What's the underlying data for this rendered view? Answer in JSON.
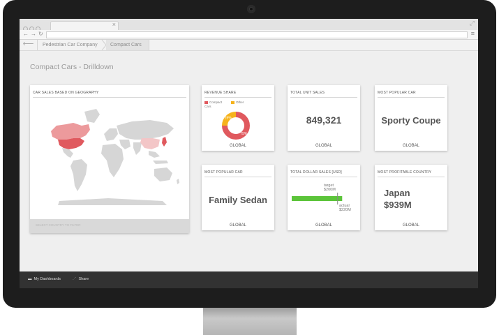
{
  "breadcrumb": {
    "items": [
      "Pedestrian Car Company",
      "Compact Cars"
    ]
  },
  "page": {
    "title": "Compact Cars - Drilldown"
  },
  "map_card": {
    "title": "CAR SALES BASED ON GEOGRAPHY",
    "footer": "SELECT COUNTRY TO FILTER",
    "colors": {
      "land": "#d6d6d6",
      "strong": "#e0595e",
      "medium": "#ec9a9c",
      "light": "#f3c6c7"
    }
  },
  "revenue_share": {
    "title": "REVENUE SHARE",
    "footer": "GLOBAL",
    "legend": [
      {
        "label": "Compact Cars",
        "color": "#e0595e"
      },
      {
        "label": "Other",
        "color": "#f6b31c"
      }
    ],
    "chart_data": {
      "type": "pie",
      "categories": [
        "Compact Cars",
        "Other"
      ],
      "values": [
        75,
        25
      ],
      "labels": [
        "75%",
        "25%"
      ]
    }
  },
  "total_unit_sales": {
    "title": "TOTAL UNIT SALES",
    "value": "849,321",
    "footer": "GLOBAL"
  },
  "popular_car_1": {
    "title": "MOST POPULAR CAR",
    "value": "Sporty Coupe",
    "footer": "GLOBAL"
  },
  "popular_car_2": {
    "title": "MOST POPULAR CAR",
    "value": "Family Sedan",
    "footer": "GLOBAL"
  },
  "dollar_sales": {
    "title": "TOTAL DOLLAR SALES [USD]",
    "footer": "GLOBAL",
    "target_label": "target",
    "target_value": "$200M",
    "actual_label": "actual",
    "actual_value": "$220M",
    "chart_data": {
      "type": "bar",
      "target": 200,
      "actual": 220,
      "unit": "$M",
      "bar_color": "#5cc43a"
    }
  },
  "profitable_country": {
    "title": "MOST PROFITABLE COUNTRY",
    "country": "Japan",
    "value": "$939M",
    "footer": "GLOBAL"
  },
  "taskbar": {
    "dashboards_label": "My Dashboards",
    "share_label": "Share"
  }
}
